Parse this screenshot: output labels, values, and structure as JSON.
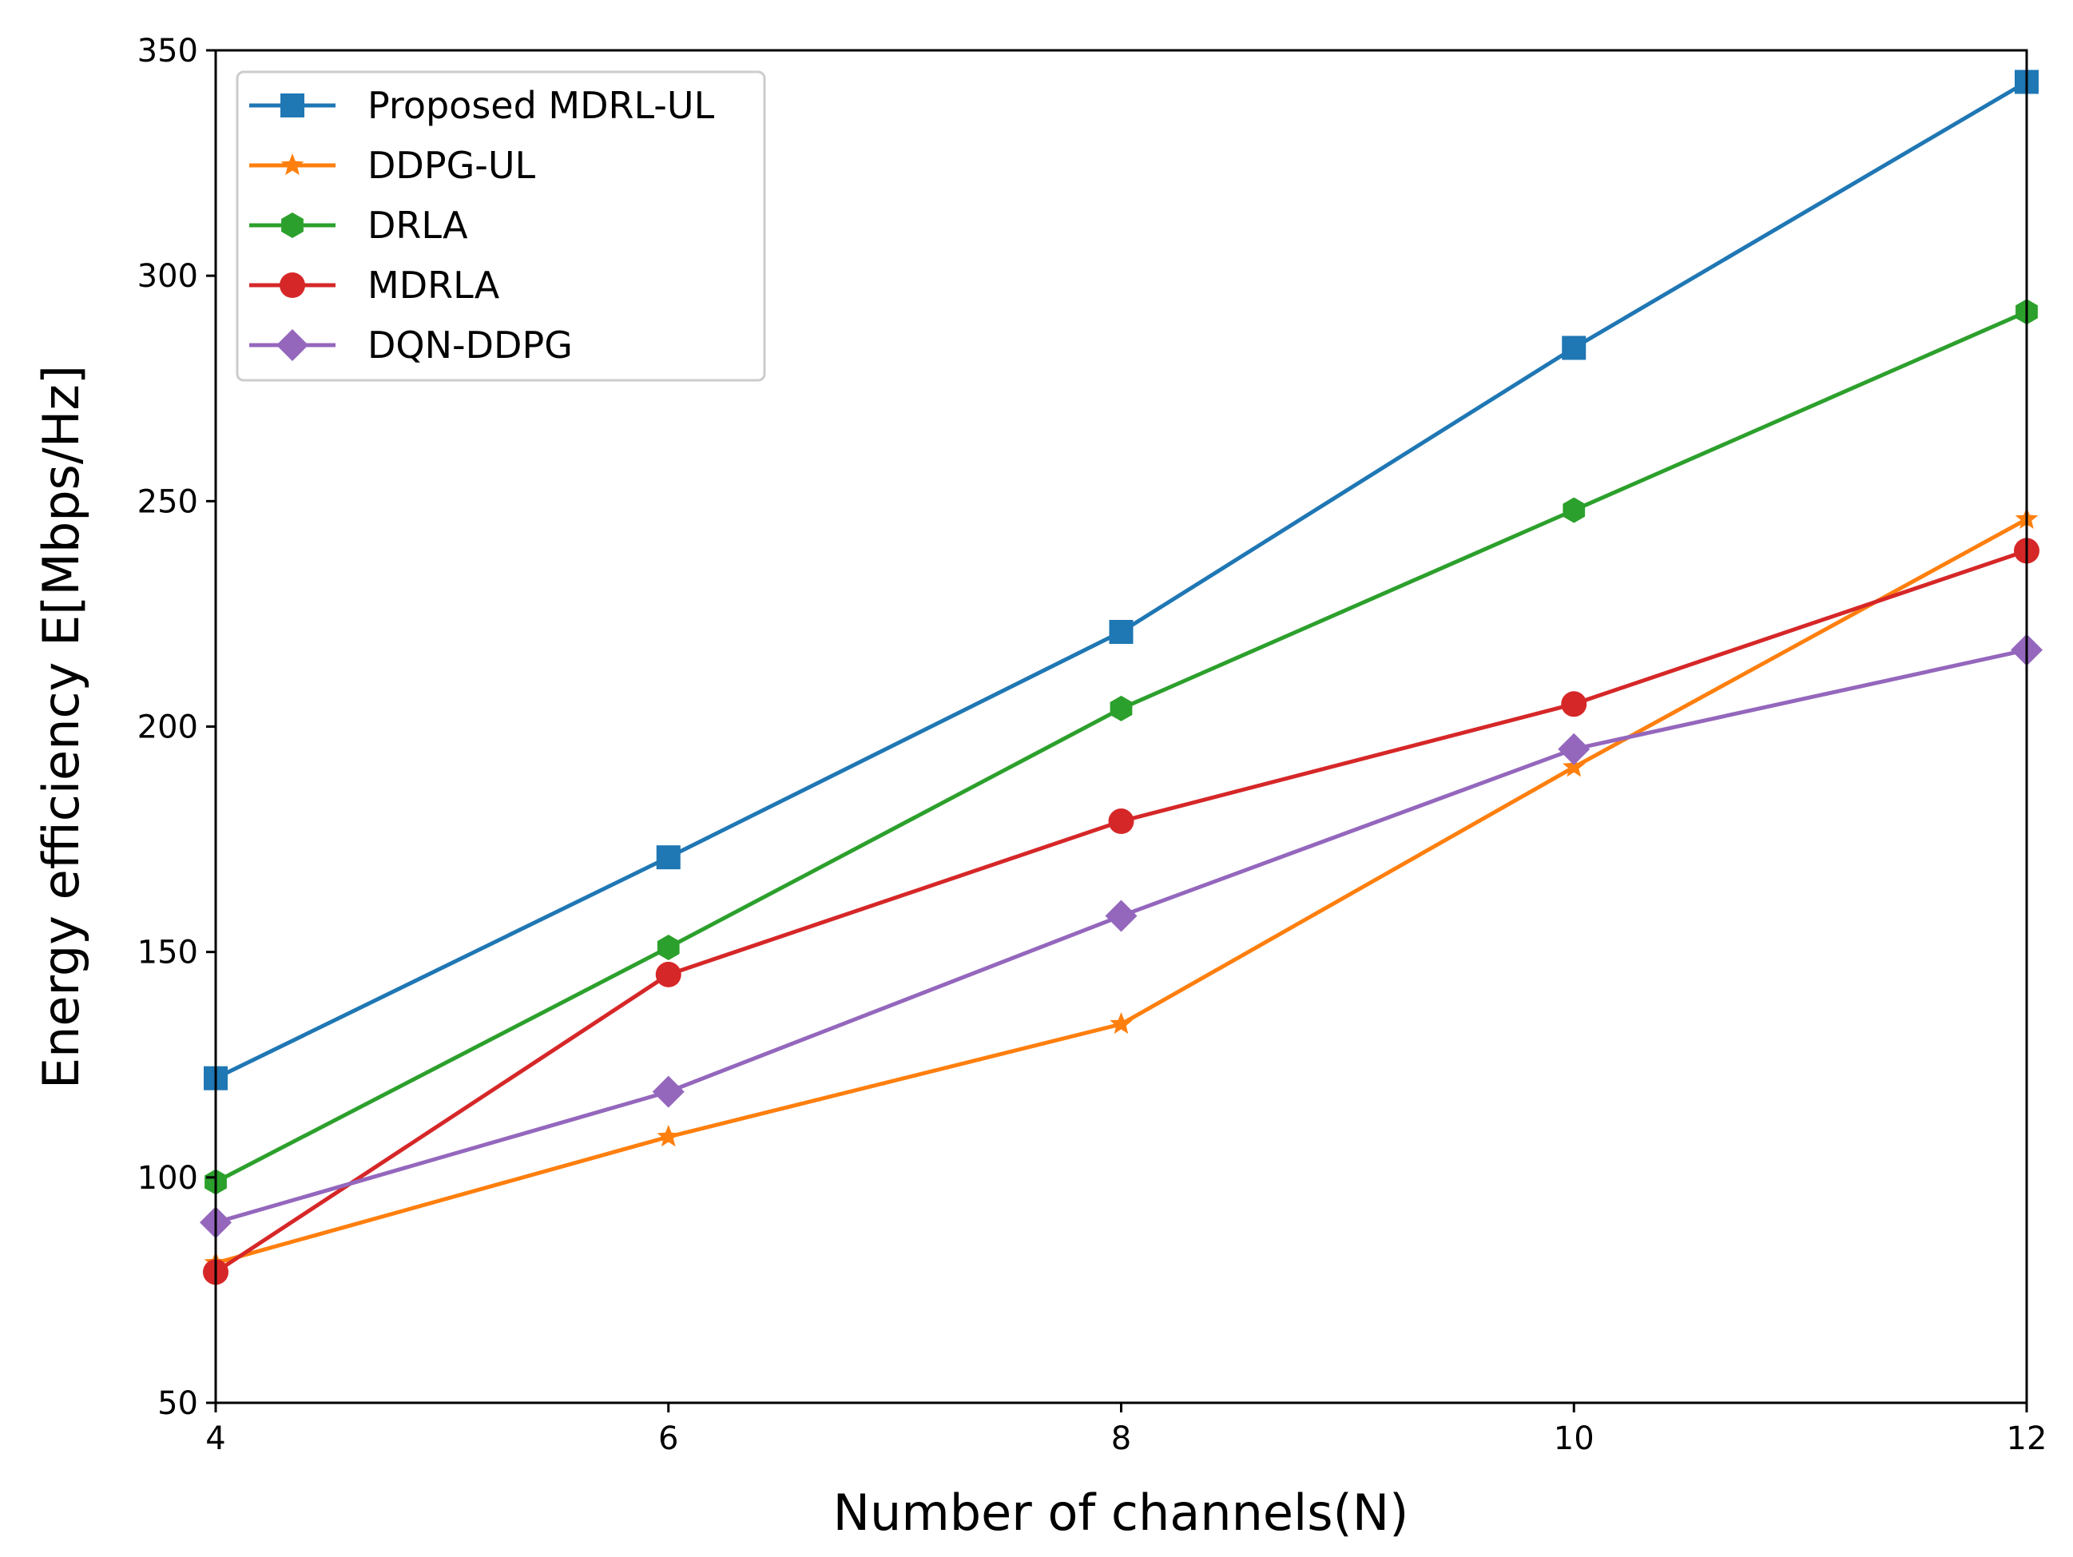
{
  "chart_data": {
    "type": "line",
    "title": "",
    "xlabel": "Number of channels(N)",
    "ylabel": "Energy efficiency E[Mbps/Hz]",
    "x": [
      4,
      6,
      8,
      10,
      12
    ],
    "xlim": [
      4,
      12
    ],
    "ylim": [
      50,
      350
    ],
    "xticks": [
      4,
      6,
      8,
      10,
      12
    ],
    "yticks": [
      50,
      100,
      150,
      200,
      250,
      300,
      350
    ],
    "grid": false,
    "legend_position": "top-left",
    "series": [
      {
        "name": "Proposed MDRL-UL",
        "color": "#1f77b4",
        "marker": "square",
        "values": [
          122,
          171,
          221,
          284,
          343
        ]
      },
      {
        "name": "DDPG-UL",
        "color": "#ff7f0e",
        "marker": "star",
        "values": [
          81,
          109,
          134,
          191,
          246
        ]
      },
      {
        "name": "DRLA",
        "color": "#2ca02c",
        "marker": "hexagon",
        "values": [
          99,
          151,
          204,
          248,
          292
        ]
      },
      {
        "name": "MDRLA",
        "color": "#d62728",
        "marker": "circle",
        "values": [
          79,
          145,
          179,
          205,
          239
        ]
      },
      {
        "name": "DQN-DDPG",
        "color": "#9467bd",
        "marker": "diamond",
        "values": [
          90,
          119,
          158,
          195,
          217
        ]
      }
    ]
  }
}
